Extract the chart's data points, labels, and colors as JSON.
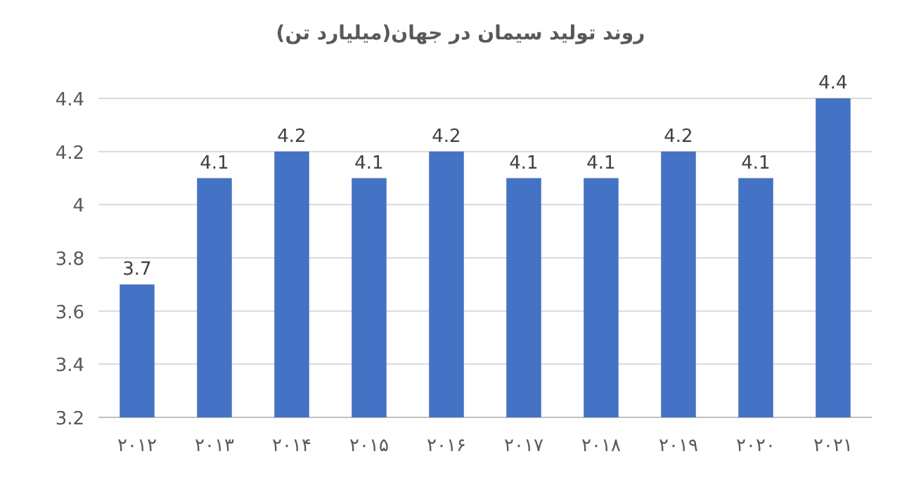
{
  "chart_data": {
    "type": "bar",
    "title": "روند تولید سیمان در جهان(میلیارد تن)",
    "categories": [
      "۲۰۱۲",
      "۲۰۱۳",
      "۲۰۱۴",
      "۲۰۱۵",
      "۲۰۱۶",
      "۲۰۱۷",
      "۲۰۱۸",
      "۲۰۱۹",
      "۲۰۲۰",
      "۲۰۲۱"
    ],
    "values": [
      3.7,
      4.1,
      4.2,
      4.1,
      4.2,
      4.1,
      4.1,
      4.2,
      4.1,
      4.4
    ],
    "color": "#4472c4",
    "ylim": [
      3.2,
      4.4
    ],
    "yticks": [
      3.2,
      3.4,
      3.6,
      3.8,
      4,
      4.2,
      4.4
    ],
    "grid": "y",
    "data_labels": true
  }
}
